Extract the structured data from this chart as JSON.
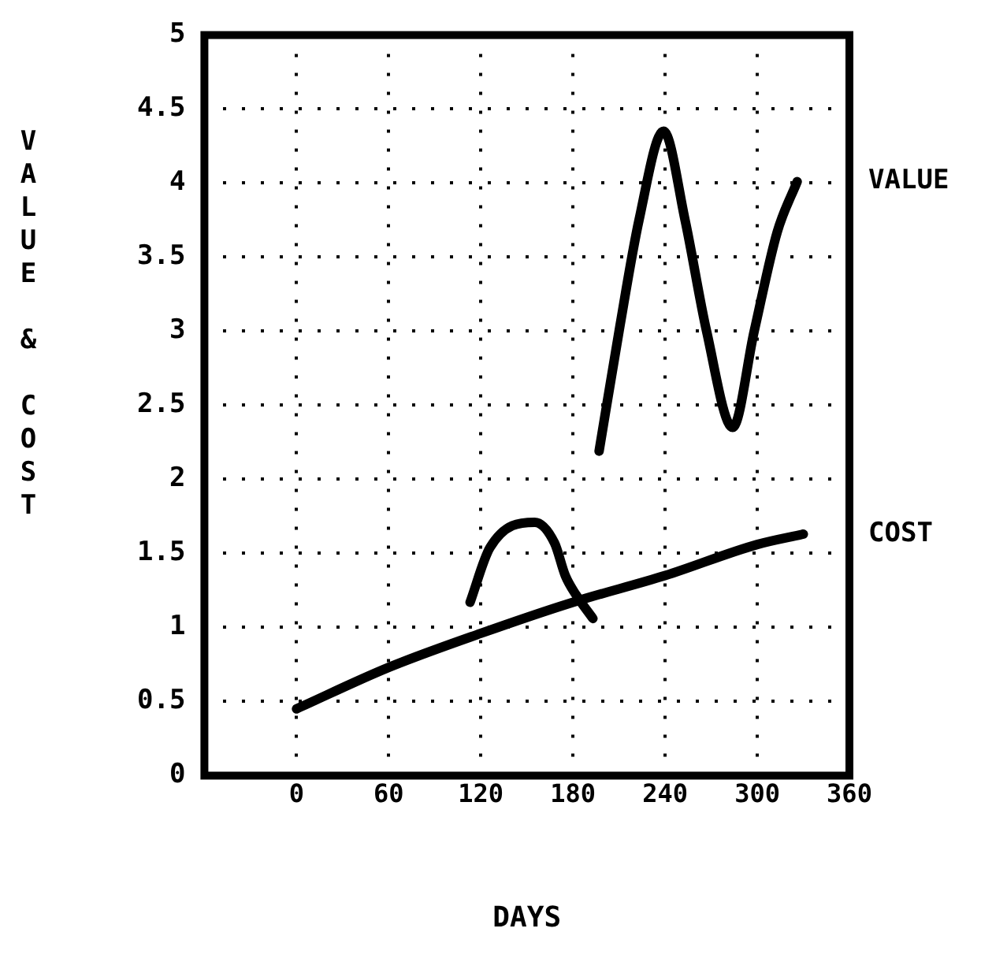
{
  "chart_data": {
    "type": "line",
    "xlabel": "DAYS",
    "ylabel": "VALUE & COST",
    "xlim": [
      -60,
      360
    ],
    "xticks": [
      0,
      60,
      120,
      180,
      240,
      300,
      360
    ],
    "ylim": [
      0,
      5
    ],
    "yticks": [
      0,
      0.5,
      1,
      1.5,
      2,
      2.5,
      3,
      3.5,
      4,
      4.5,
      5
    ],
    "grid": true,
    "legend": false,
    "marker": "none",
    "line_style": "solid",
    "series": [
      {
        "name": "VALUE",
        "color": "#000000",
        "x": [
          197,
          210,
          223,
          239,
          253,
          267,
          284,
          298,
          313,
          326
        ],
        "values": [
          2.19,
          3.0,
          3.75,
          4.35,
          3.75,
          3.0,
          2.35,
          3.0,
          3.67,
          4.01
        ]
      },
      {
        "name": "COST",
        "color": "#000000",
        "x": [
          0,
          60,
          120,
          180,
          240,
          300,
          330
        ],
        "values": [
          0.45,
          0.73,
          0.96,
          1.17,
          1.35,
          1.56,
          1.63
        ]
      },
      {
        "color": "#000000",
        "x": [
          113,
          126,
          155,
          168,
          175,
          182,
          193
        ],
        "values": [
          1.17,
          1.54,
          1.71,
          1.57,
          1.35,
          1.22,
          1.06
        ]
      }
    ]
  }
}
